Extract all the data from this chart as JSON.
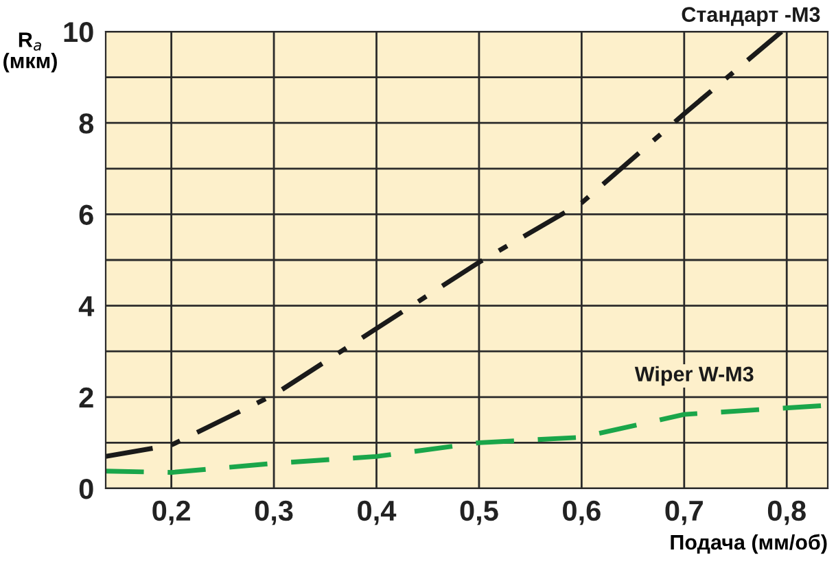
{
  "chart_data": {
    "type": "line",
    "xlabel": "Подача (мм/об)",
    "ylabel": "R$_{a}$\n(мкм)",
    "xlim": [
      0.136,
      0.84
    ],
    "xticks": [
      {
        "value": 0.2,
        "label": "0,2"
      },
      {
        "value": 0.3,
        "label": "0,3"
      },
      {
        "value": 0.4,
        "label": "0,4"
      },
      {
        "value": 0.5,
        "label": "0,5"
      },
      {
        "value": 0.6,
        "label": "0,6"
      },
      {
        "value": 0.7,
        "label": "0,7"
      },
      {
        "value": 0.8,
        "label": "0,8"
      }
    ],
    "ylim": [
      0,
      10
    ],
    "yticks": [
      0,
      {
        "value": 1,
        "label": null
      },
      2,
      {
        "value": 3,
        "label": null
      },
      4,
      {
        "value": 5,
        "label": null
      },
      6,
      {
        "value": 7,
        "label": null
      },
      8,
      {
        "value": 9,
        "label": null
      },
      10
    ],
    "grid": true,
    "legend": false,
    "marker": "none",
    "series": [
      {
        "name": "Стандарт -M3",
        "color": "#1a1a1a",
        "line_style": "dashdot",
        "x": [
          0.136,
          0.2,
          0.3,
          0.4,
          0.5,
          0.6,
          0.7,
          0.795
        ],
        "values": [
          0.7,
          0.95,
          2.05,
          3.5,
          4.95,
          6.25,
          8.2,
          10
        ]
      },
      {
        "name": "Wiper W-M3",
        "color": "#1aa64a",
        "line_style": "dashed",
        "x": [
          0.136,
          0.2,
          0.3,
          0.4,
          0.5,
          0.6,
          0.7,
          0.84
        ],
        "values": [
          0.38,
          0.35,
          0.55,
          0.7,
          1.0,
          1.12,
          1.62,
          1.82
        ]
      }
    ]
  }
}
